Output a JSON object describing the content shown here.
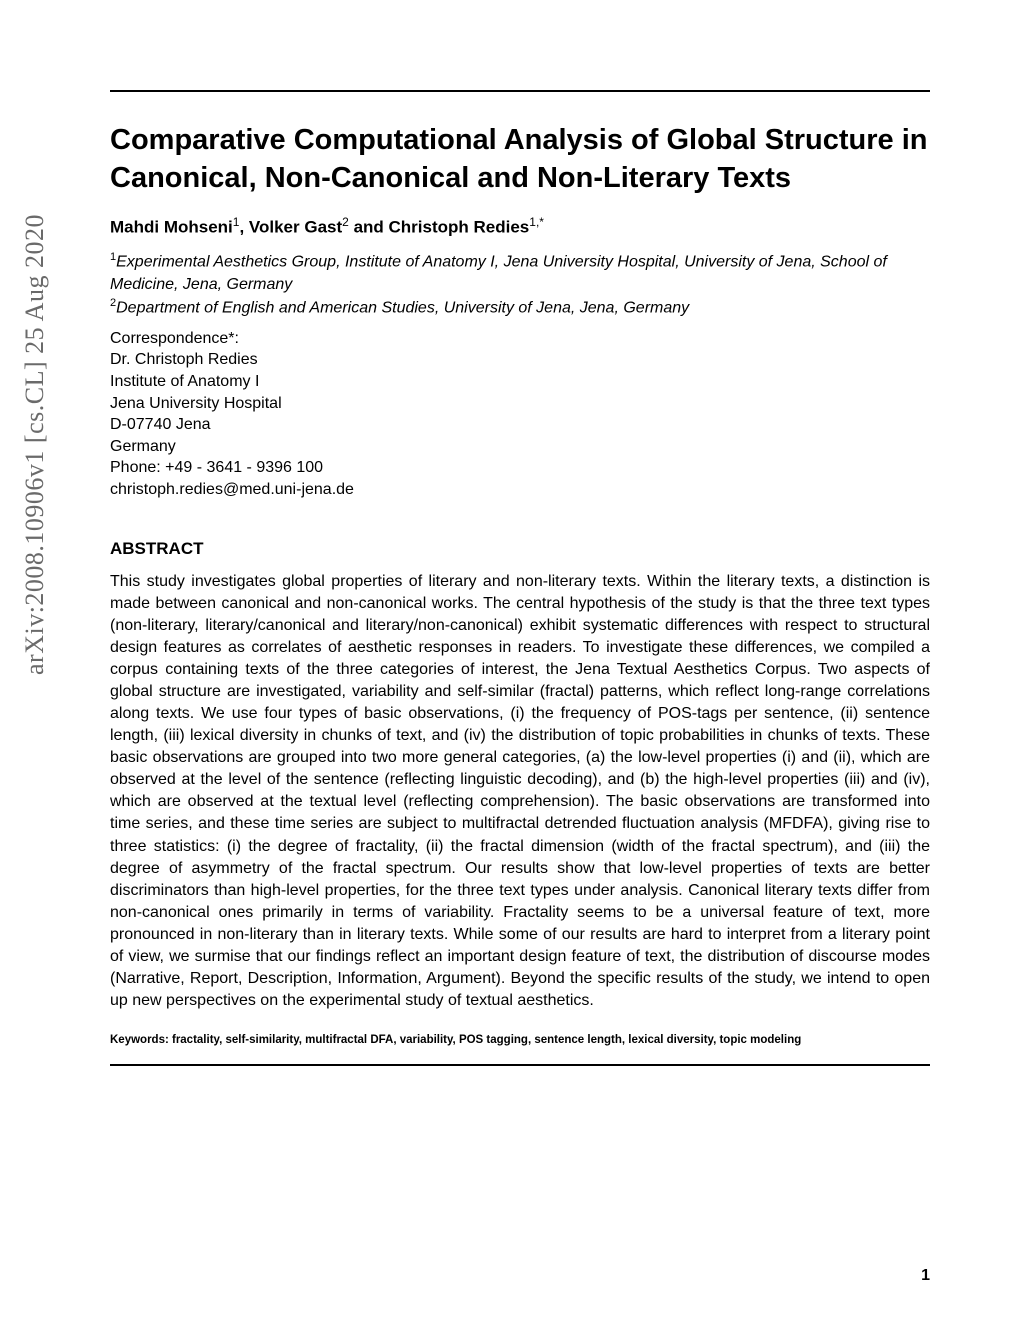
{
  "arxiv": "arXiv:2008.10906v1  [cs.CL]  25 Aug 2020",
  "title": "Comparative Computational Analysis of Global Structure in Canonical, Non-Canonical and Non-Literary Texts",
  "authors": [
    {
      "name": "Mahdi Mohseni",
      "sup": "1"
    },
    {
      "name": "Volker Gast",
      "sup": "2"
    },
    {
      "name": "Christoph Redies",
      "sup": "1,*"
    }
  ],
  "author_separator_1": ", ",
  "author_separator_2": " and ",
  "affiliations": [
    {
      "sup": "1",
      "text": "Experimental Aesthetics Group, Institute of Anatomy I, Jena University Hospital, University of Jena, School of Medicine, Jena, Germany"
    },
    {
      "sup": "2",
      "text": "Department of English and American Studies, University of Jena, Jena, Germany"
    }
  ],
  "correspondence": {
    "label": "Correspondence*:",
    "lines": [
      "Dr. Christoph Redies",
      "Institute of Anatomy I",
      "Jena University Hospital",
      "D-07740 Jena",
      "Germany",
      "Phone: +49 - 3641 - 9396 100",
      "christoph.redies@med.uni-jena.de"
    ]
  },
  "abstract_heading": "ABSTRACT",
  "abstract_text": "This study investigates global properties of literary and non-literary texts. Within the literary texts, a distinction is made between canonical and non-canonical works. The central hypothesis of the study is that the three text types (non-literary, literary/canonical and literary/non-canonical) exhibit systematic differences with respect to structural design features as correlates of aesthetic responses in readers. To investigate these differences, we compiled a corpus containing texts of the three categories of interest, the Jena Textual Aesthetics Corpus. Two aspects of global structure are investigated, variability and self-similar (fractal) patterns, which reflect long-range correlations along texts. We use four types of basic observations, (i) the frequency of POS-tags per sentence, (ii) sentence length, (iii) lexical diversity in chunks of text, and (iv) the distribution of topic probabilities in chunks of texts. These basic observations are grouped into two more general categories, (a) the low-level properties (i) and (ii), which are observed at the level of the sentence (reflecting linguistic decoding), and (b) the high-level properties (iii) and (iv), which are observed at the textual level (reflecting comprehension). The basic observations are transformed into time series, and these time series are subject to multifractal detrended fluctuation analysis (MFDFA), giving rise to three statistics: (i) the degree of fractality, (ii) the fractal dimension (width of the fractal spectrum), and (iii) the degree of asymmetry of the fractal spectrum. Our results show that low-level properties of texts are better discriminators than high-level properties, for the three text types under analysis. Canonical literary texts differ from non-canonical ones primarily in terms of variability. Fractality seems to be a universal feature of text, more pronounced in non-literary than in literary texts. While some of our results are hard to interpret from a literary point of view, we surmise that our findings reflect an important design feature of text, the distribution of discourse modes (Narrative, Report, Description, Information, Argument). Beyond the specific results of the study, we intend to open up new perspectives on the experimental study of textual aesthetics.",
  "keywords": "Keywords: fractality, self-similarity, multifractal DFA, variability, POS tagging, sentence length, lexical diversity, topic modeling",
  "page_number": "1"
}
